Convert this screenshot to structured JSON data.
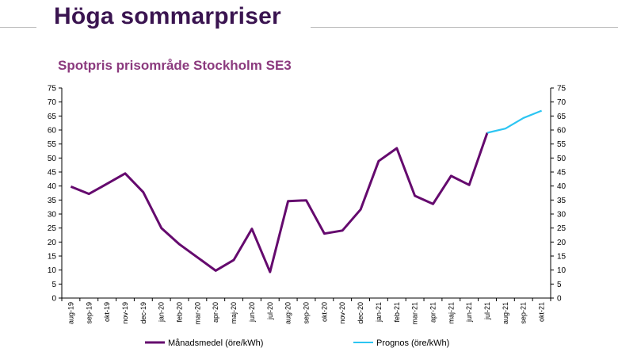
{
  "slide": {
    "title": "Höga sommarpriser"
  },
  "colors": {
    "title": "#3a1450",
    "chart_title": "#8b3a7e",
    "series1": "#650a6e",
    "series2": "#2cc5f2"
  },
  "chart_data": {
    "type": "line",
    "title": "Spotpris prisområde Stockholm SE3",
    "xlabel": "",
    "ylabel": "",
    "ylim": [
      0,
      75
    ],
    "yticks": [
      0,
      5,
      10,
      15,
      20,
      25,
      30,
      35,
      40,
      45,
      50,
      55,
      60,
      65,
      70,
      75
    ],
    "secondary_ylim": [
      0,
      75
    ],
    "grid": false,
    "legend": "bottom",
    "categories": [
      "aug-19",
      "sep-19",
      "okt-19",
      "nov-19",
      "dec-19",
      "jan-20",
      "feb-20",
      "mar-20",
      "apr-20",
      "maj-20",
      "jun-20",
      "jul-20",
      "aug-20",
      "sep-20",
      "okt-20",
      "nov-20",
      "dec-20",
      "jan-21",
      "feb-21",
      "mar-21",
      "apr-21",
      "maj-21",
      "jun-21",
      "jul-21",
      "aug-21",
      "sep-21",
      "okt-21"
    ],
    "series": [
      {
        "name": "Månadsmedel (öre/kWh)",
        "color": "#650a6e",
        "values": [
          39.8,
          37.2,
          40.8,
          44.5,
          37.8,
          25.0,
          19.2,
          14.5,
          9.8,
          13.6,
          24.7,
          9.3,
          34.6,
          34.9,
          23.0,
          24.1,
          31.6,
          48.9,
          53.5,
          36.5,
          33.6,
          43.6,
          40.4,
          59.0,
          null,
          null,
          null
        ]
      },
      {
        "name": "Prognos (öre/kWh)",
        "color": "#2cc5f2",
        "values": [
          null,
          null,
          null,
          null,
          null,
          null,
          null,
          null,
          null,
          null,
          null,
          null,
          null,
          null,
          null,
          null,
          null,
          null,
          null,
          null,
          null,
          null,
          null,
          59.0,
          60.5,
          64.3,
          66.9
        ]
      }
    ]
  }
}
